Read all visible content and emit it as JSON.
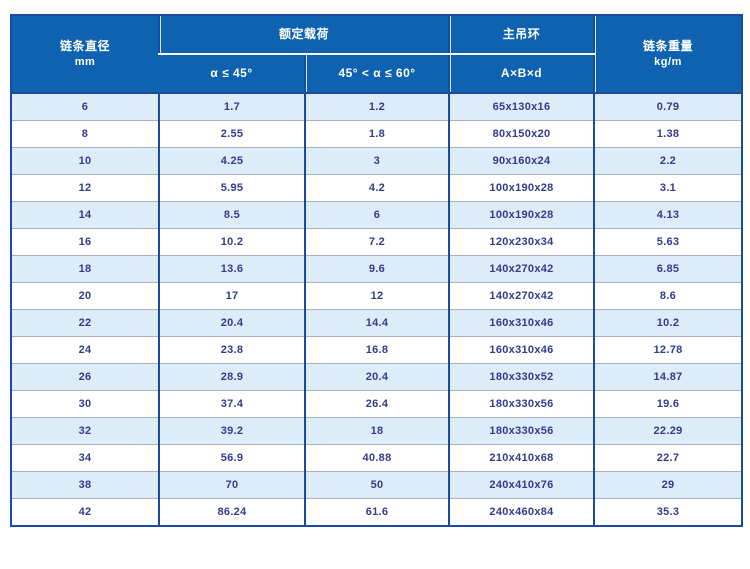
{
  "table": {
    "headers": {
      "diameter_label": "链条直径",
      "diameter_unit": "mm",
      "rated_load_label": "额定载荷",
      "angle_le_45_label": "α ≤ 45°",
      "angle_45_60_label": "45° < α ≤ 60°",
      "main_ring_label": "主吊环",
      "main_ring_dims_label": "A×B×d",
      "chain_weight_label": "链条重量",
      "chain_weight_unit": "kg/m"
    },
    "rows": [
      [
        "6",
        "1.7",
        "1.2",
        "65x130x16",
        "0.79"
      ],
      [
        "8",
        "2.55",
        "1.8",
        "80x150x20",
        "1.38"
      ],
      [
        "10",
        "4.25",
        "3",
        "90x160x24",
        "2.2"
      ],
      [
        "12",
        "5.95",
        "4.2",
        "100x190x28",
        "3.1"
      ],
      [
        "14",
        "8.5",
        "6",
        "100x190x28",
        "4.13"
      ],
      [
        "16",
        "10.2",
        "7.2",
        "120x230x34",
        "5.63"
      ],
      [
        "18",
        "13.6",
        "9.6",
        "140x270x42",
        "6.85"
      ],
      [
        "20",
        "17",
        "12",
        "140x270x42",
        "8.6"
      ],
      [
        "22",
        "20.4",
        "14.4",
        "160x310x46",
        "10.2"
      ],
      [
        "24",
        "23.8",
        "16.8",
        "160x310x46",
        "12.78"
      ],
      [
        "26",
        "28.9",
        "20.4",
        "180x330x52",
        "14.87"
      ],
      [
        "30",
        "37.4",
        "26.4",
        "180x330x56",
        "19.6"
      ],
      [
        "32",
        "39.2",
        "18",
        "180x330x56",
        "22.29"
      ],
      [
        "34",
        "56.9",
        "40.88",
        "210x410x68",
        "22.7"
      ],
      [
        "38",
        "70",
        "50",
        "240x410x76",
        "29"
      ],
      [
        "42",
        "86.24",
        "61.6",
        "240x460x84",
        "35.3"
      ]
    ],
    "colors": {
      "header_bg": "#0e62b0",
      "border_dark": "#1a4ba3",
      "row_alt_bg": "#dcecf8",
      "row_bg": "#ffffff",
      "cell_text": "#323c8e",
      "row_divider": "#a8aec8"
    }
  }
}
